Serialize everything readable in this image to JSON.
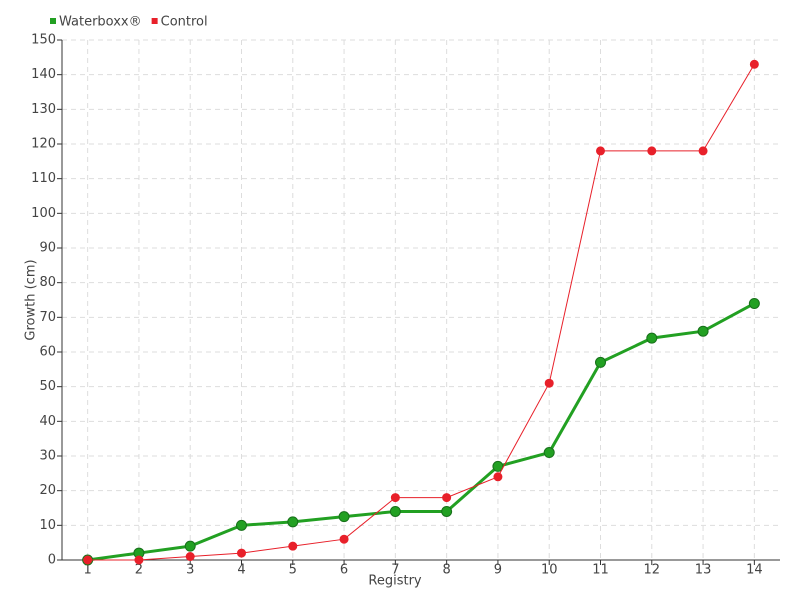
{
  "chart_data": {
    "type": "line",
    "x_label": "Registry",
    "y_label": "Growth (cm)",
    "categories": [
      "1",
      "2",
      "3",
      "4",
      "5",
      "6",
      "7",
      "8",
      "9",
      "10",
      "11",
      "12",
      "13",
      "14"
    ],
    "series": [
      {
        "name": "Waterboxx®",
        "color": "#22a022",
        "values": [
          0,
          2,
          4,
          10,
          11,
          12.5,
          14,
          14,
          27,
          31,
          57,
          64,
          66,
          74
        ]
      },
      {
        "name": "Control",
        "color": "#e8202a",
        "values": [
          0,
          0,
          1,
          2,
          4,
          6,
          18,
          18,
          24,
          51,
          118,
          118,
          118,
          143
        ]
      }
    ],
    "ylim": [
      0,
      150
    ],
    "yticks": [
      0,
      10,
      20,
      30,
      40,
      50,
      60,
      70,
      80,
      90,
      100,
      110,
      120,
      130,
      140,
      150
    ],
    "grid": true,
    "legend": "top-left"
  }
}
